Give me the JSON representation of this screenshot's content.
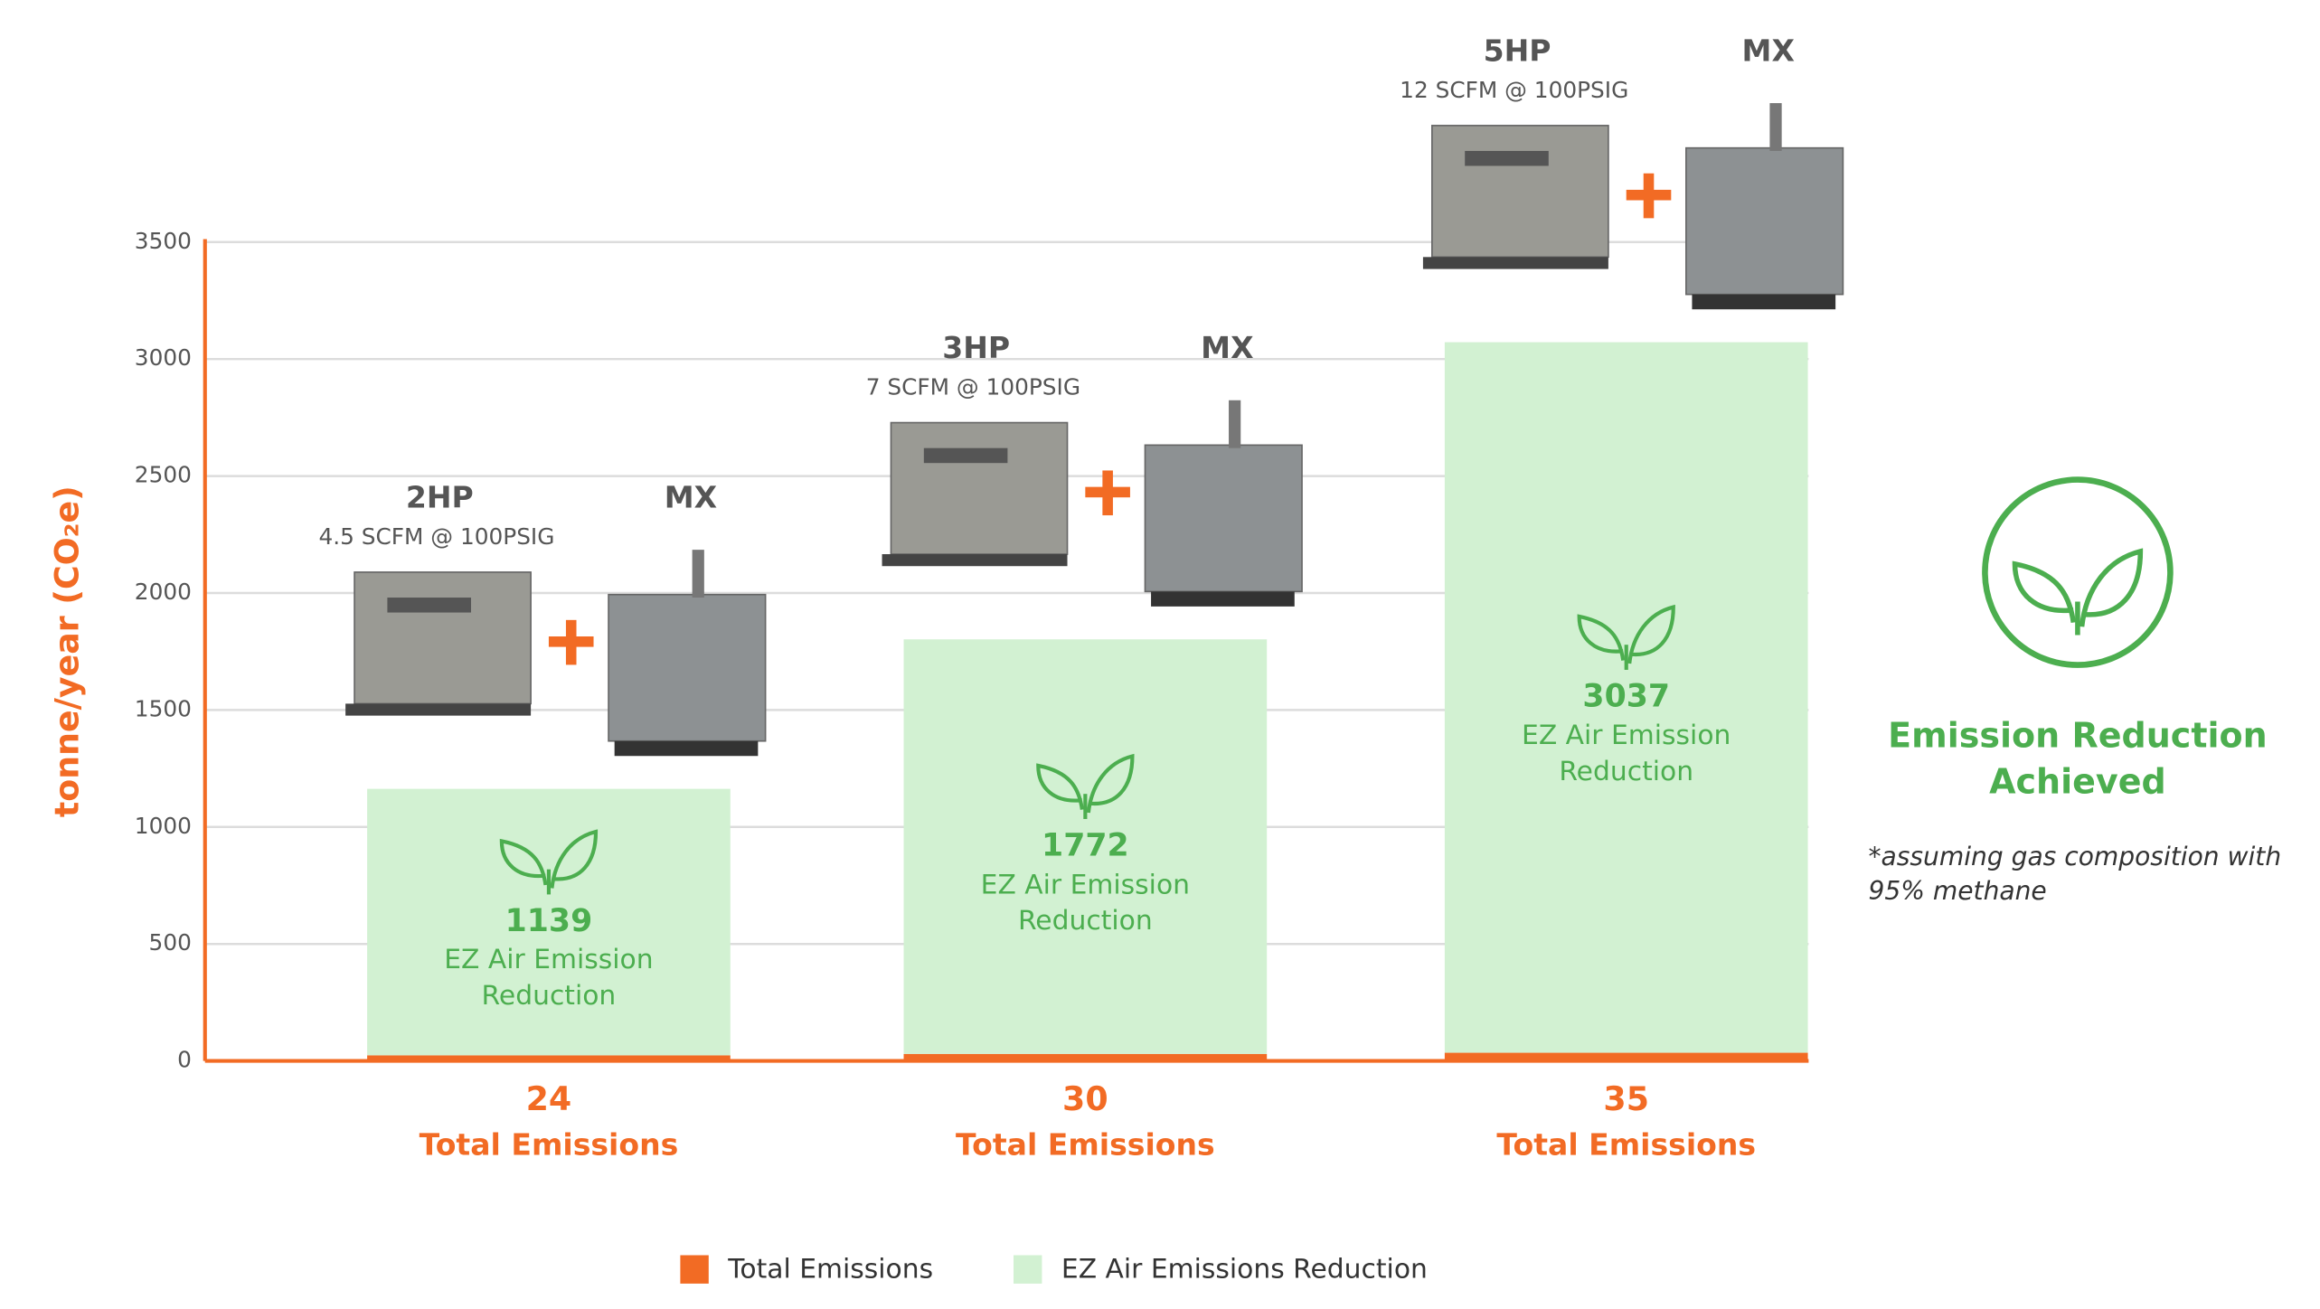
{
  "chart_data": {
    "type": "stacked_bar",
    "y_label": "tonne/year (CO₂e)",
    "ylim": [
      0,
      3500
    ],
    "yticks": [
      0,
      500,
      1000,
      1500,
      2000,
      2500,
      3000,
      3500
    ],
    "grid": true,
    "series": [
      {
        "name": "Total Emissions",
        "color": "#f26b24",
        "values": [
          24,
          30,
          35
        ]
      },
      {
        "name": "EZ Air Emissions Reduction",
        "color": "#d2f1d2",
        "values": [
          1139,
          1772,
          3037
        ]
      }
    ],
    "bar_label": "EZ Air Emission Reduction",
    "x_label": "Total Emissions",
    "equipment": [
      {
        "hp": "2HP",
        "spec": "4.5 SCFM @ 100PSIG",
        "mx": "MX"
      },
      {
        "hp": "3HP",
        "spec": "7 SCFM @ 100PSIG",
        "mx": "MX"
      },
      {
        "hp": "5HP",
        "spec": "12 SCFM @ 100PSIG",
        "mx": "MX"
      }
    ],
    "side_title": "Emission Reduction Achieved",
    "side_note": "*assuming gas composition with 95% methane",
    "legend": "bottom"
  }
}
